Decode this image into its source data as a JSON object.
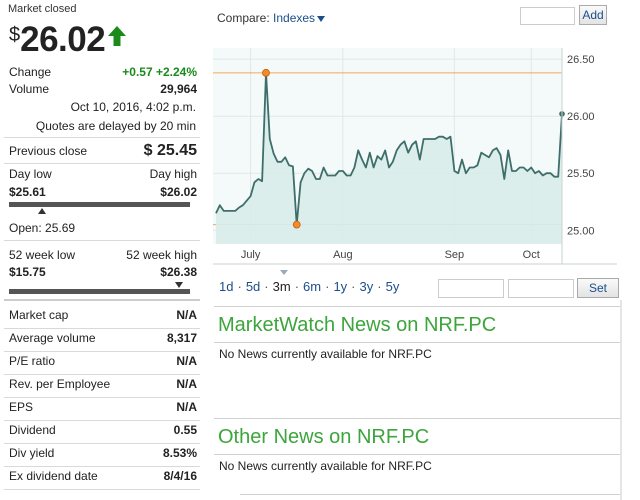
{
  "quote": {
    "status": "Market closed",
    "currency": "$",
    "price": "26.02",
    "change_label": "Change",
    "change_value": "+0.57 +2.24%",
    "volume_label": "Volume",
    "volume_value": "29,964",
    "timestamp": "Oct 10, 2016, 4:02 p.m.",
    "delay_note": "Quotes are delayed by 20 min",
    "prev_close_label": "Previous close",
    "prev_close_value": "$ 25.45",
    "day_low_label": "Day low",
    "day_high_label": "Day high",
    "day_low_value": "$25.61",
    "day_high_value": "$26.02",
    "day_range_position": 0.18,
    "open_text": "Open: 25.69",
    "week_low_label": "52 week low",
    "week_high_label": "52 week high",
    "week_low_value": "$15.75",
    "week_high_value": "$26.38",
    "week_range_position": 0.94
  },
  "stats": [
    {
      "label": "Market cap",
      "value": "N/A"
    },
    {
      "label": "Average volume",
      "value": "8,317"
    },
    {
      "label": "P/E ratio",
      "value": "N/A"
    },
    {
      "label": "Rev. per Employee",
      "value": "N/A"
    },
    {
      "label": "EPS",
      "value": "N/A"
    },
    {
      "label": "Dividend",
      "value": "0.55"
    },
    {
      "label": "Div yield",
      "value": "8.53%"
    },
    {
      "label": "Ex dividend date",
      "value": "8/4/16"
    }
  ],
  "compare": {
    "label": "Compare:",
    "link": "Indexes",
    "add_button": "Add"
  },
  "periods": [
    "1d",
    "5d",
    "3m",
    "6m",
    "1y",
    "3y",
    "5y"
  ],
  "active_period": "3m",
  "set_button": "Set",
  "news": {
    "marketwatch_title": "MarketWatch News on NRF.PC",
    "marketwatch_text": "No News currently available for NRF.PC",
    "other_title": "Other News on NRF.PC",
    "other_text": "No News currently available for NRF.PC"
  },
  "colors": {
    "positive": "#1a8a1a",
    "news_heading": "#3ca53c",
    "link": "#1b4f8a",
    "line": "#3f6e6a",
    "area": "#d8ecea",
    "marker": "#f28c28"
  },
  "chart_data": {
    "type": "area",
    "x_ticks": [
      "July",
      "Aug",
      "Sep",
      "Oct"
    ],
    "x_tick_index": [
      9,
      33,
      62,
      82
    ],
    "y_ticks": [
      25.0,
      25.5,
      26.0,
      26.5
    ],
    "ylim": [
      24.88,
      26.58
    ],
    "reference_lines": [
      26.38,
      25.05
    ],
    "highlight_points": [
      {
        "index": 13,
        "value": 26.38
      },
      {
        "index": 21,
        "value": 25.05
      }
    ],
    "values": [
      25.15,
      25.22,
      25.17,
      25.17,
      25.17,
      25.17,
      25.2,
      25.22,
      25.26,
      25.3,
      25.42,
      25.45,
      25.43,
      26.38,
      25.8,
      25.67,
      25.6,
      25.6,
      25.64,
      25.57,
      25.56,
      25.05,
      25.42,
      25.5,
      25.54,
      25.52,
      25.45,
      25.45,
      25.55,
      25.48,
      25.48,
      25.48,
      25.52,
      25.52,
      25.48,
      25.48,
      25.55,
      25.7,
      25.62,
      25.55,
      25.68,
      25.55,
      25.65,
      25.62,
      25.7,
      25.55,
      25.6,
      25.7,
      25.75,
      25.78,
      25.68,
      25.75,
      25.78,
      25.62,
      25.8,
      25.8,
      25.8,
      25.8,
      25.82,
      25.82,
      25.8,
      25.82,
      25.52,
      25.5,
      25.62,
      25.5,
      25.55,
      25.55,
      25.57,
      25.68,
      25.66,
      25.64,
      25.7,
      25.72,
      25.66,
      25.45,
      25.7,
      25.52,
      25.52,
      25.55,
      25.55,
      25.52,
      25.55,
      25.5,
      25.52,
      25.48,
      25.5,
      25.5,
      25.47,
      25.47,
      26.02
    ]
  }
}
